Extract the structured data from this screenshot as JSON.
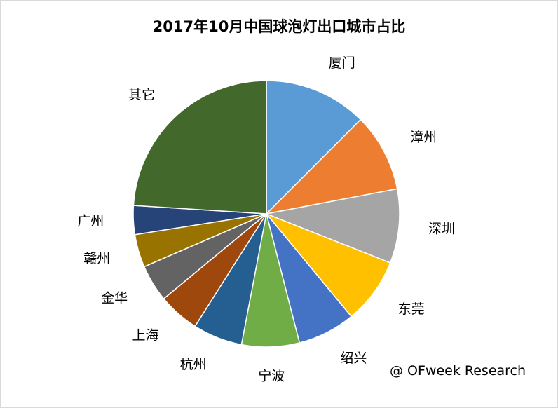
{
  "chart_data": {
    "type": "pie",
    "title": "2017年10月中国球泡灯出口城市占比",
    "categories": [
      "厦门",
      "漳州",
      "深圳",
      "东莞",
      "绍兴",
      "宁波",
      "杭州",
      "上海",
      "金华",
      "赣州",
      "广州",
      "其它"
    ],
    "values": [
      12.5,
      9.5,
      9.0,
      8.0,
      7.0,
      7.0,
      6.0,
      5.0,
      4.5,
      4.0,
      3.5,
      24.0
    ],
    "colors": [
      "#5b9bd5",
      "#ed7d31",
      "#a5a5a5",
      "#ffc000",
      "#4472c4",
      "#70ad47",
      "#255e91",
      "#9e480e",
      "#636363",
      "#997300",
      "#264478",
      "#43682b"
    ],
    "legend": "none (labels outside slices)"
  },
  "watermark": "@ OFweek Research"
}
